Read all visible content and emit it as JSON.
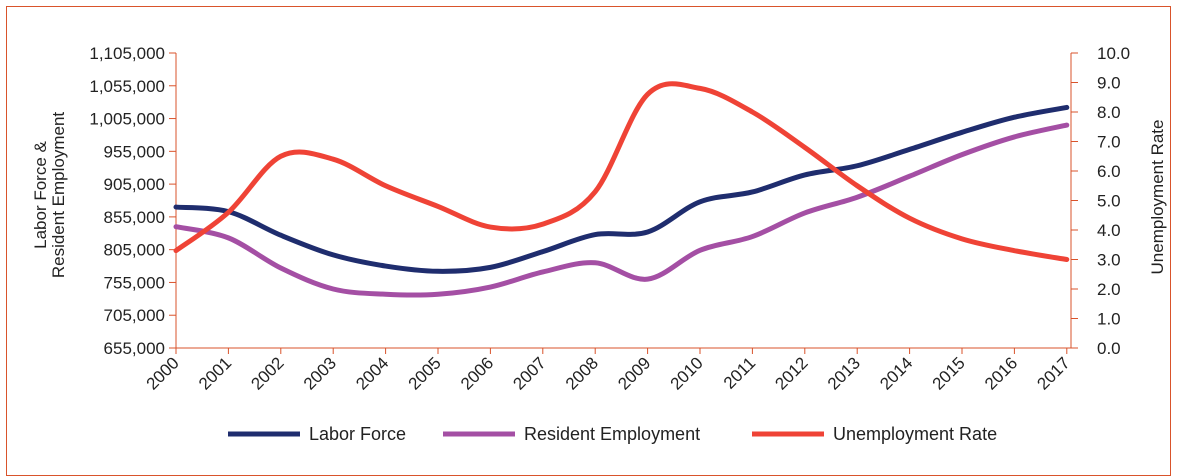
{
  "chart_data": {
    "type": "line",
    "categories": [
      "2000",
      "2001",
      "2002",
      "2003",
      "2004",
      "2005",
      "2006",
      "2007",
      "2008",
      "2009",
      "2010",
      "2011",
      "2012",
      "2013",
      "2014",
      "2015",
      "2016",
      "2017"
    ],
    "ylabel_lines": [
      "Labor Force &",
      "Resident Employment"
    ],
    "y2label": "Unemployment Rate",
    "ylim": [
      655000,
      1105000
    ],
    "y_ticks": [
      "1,105,000",
      "1,055,000",
      "1,005,000",
      "955,000",
      "905,000",
      "855,000",
      "805,000",
      "755,000",
      "705,000",
      "655,000"
    ],
    "y2lim": [
      0,
      10
    ],
    "y2_ticks": [
      "10.0",
      "9.0",
      "8.0",
      "7.0",
      "6.0",
      "5.0",
      "4.0",
      "3.0",
      "2.0",
      "1.0",
      "0.0"
    ],
    "series": [
      {
        "name": "Labor Force",
        "axis": "left",
        "color": "#1f2d6e",
        "values": [
          870000,
          863000,
          827000,
          797000,
          780000,
          772000,
          778000,
          802000,
          828000,
          832000,
          878000,
          893000,
          919000,
          933000,
          958000,
          984000,
          1007000,
          1022000
        ]
      },
      {
        "name": "Resident Employment",
        "axis": "left",
        "color": "#a44fa4",
        "values": [
          840000,
          823000,
          777000,
          745000,
          737000,
          737000,
          748000,
          771000,
          785000,
          760000,
          804000,
          825000,
          861000,
          885000,
          917000,
          950000,
          977000,
          995000
        ]
      },
      {
        "name": "Unemployment Rate",
        "axis": "right",
        "color": "#ef4336",
        "values": [
          3.3,
          4.6,
          6.5,
          6.4,
          5.5,
          4.8,
          4.1,
          4.2,
          5.3,
          8.6,
          8.8,
          8.0,
          6.8,
          5.5,
          4.4,
          3.7,
          3.3,
          3.0
        ]
      }
    ],
    "legend_position": "bottom",
    "grid": false
  }
}
